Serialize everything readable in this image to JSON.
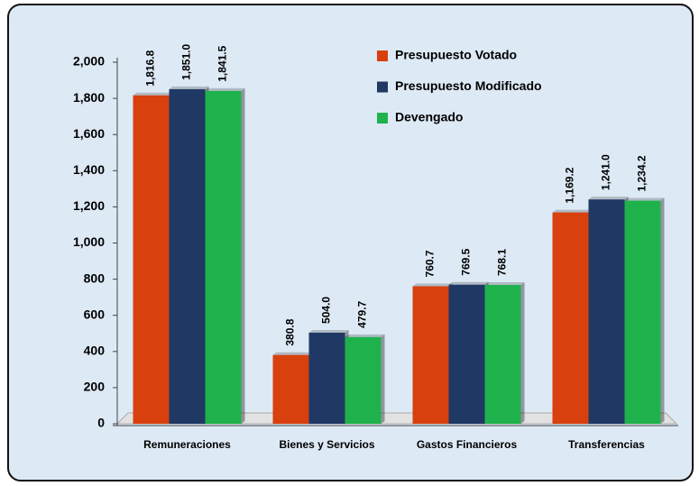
{
  "chart_data": {
    "type": "bar",
    "categories": [
      "Remuneraciones",
      "Bienes y Servicios",
      "Gastos Financieros",
      "Transferencias"
    ],
    "series": [
      {
        "name": "Presupuesto Votado",
        "color": "#d8400e",
        "values": [
          1816.8,
          380.8,
          760.7,
          1169.2
        ],
        "value_labels": [
          "1,816.8",
          "380.8",
          "760.7",
          "1,169.2"
        ]
      },
      {
        "name": "Presupuesto Modificado",
        "color": "#1f3864",
        "values": [
          1851.0,
          504.0,
          769.5,
          1241.0
        ],
        "value_labels": [
          "1,851.0",
          "504.0",
          "769.5",
          "1,241.0"
        ]
      },
      {
        "name": "Devengado",
        "color": "#1fb24c",
        "values": [
          1841.5,
          479.7,
          768.1,
          1234.2
        ],
        "value_labels": [
          "1,841.5",
          "479.7",
          "768.1",
          "1,234.2"
        ]
      }
    ],
    "ylim": [
      0,
      2000
    ],
    "yticks": [
      0,
      200,
      400,
      600,
      800,
      {
        "value": 1000,
        "label": "1,000"
      },
      {
        "value": 1200,
        "label": "1,200"
      },
      {
        "value": 1400,
        "label": "1,400"
      },
      {
        "value": 1600,
        "label": "1,600"
      },
      {
        "value": 1800,
        "label": "1,800"
      },
      {
        "value": 2000,
        "label": "2,000"
      }
    ],
    "legend": "top-right"
  }
}
